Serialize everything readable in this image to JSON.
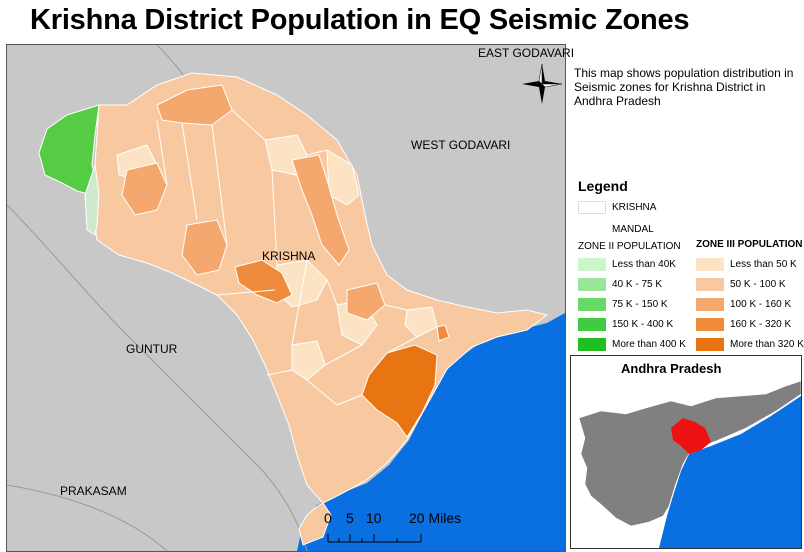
{
  "title": "Krishna District Population in EQ Seismic Zones",
  "map": {
    "labels": {
      "east_godavari": "EAST GODAVARI",
      "west_godavari": "WEST GODAVARI",
      "krishna": "KRISHNA",
      "guntur": "GUNTUR",
      "prakasam": "PRAKASAM"
    },
    "scale": {
      "labels": [
        "0",
        "5",
        "10",
        "20 Miles"
      ]
    },
    "colors": {
      "land": "#c8c8c8",
      "sea": "#0a6fe0",
      "zone2": "#55cc44",
      "zone2_light": "#cfe9cf"
    }
  },
  "description": "This map shows population distribution in Seismic zones for Krishna District in Andhra Pradesh",
  "legend": {
    "title": "Legend",
    "krishna": "KRISHNA",
    "mandal": "MANDAL",
    "zone2_title": "ZONE II POPULATION",
    "zone2": [
      {
        "label": "Less than 40K",
        "color": "#ccf5cc"
      },
      {
        "label": "40 K - 75 K",
        "color": "#99e699"
      },
      {
        "label": "75 K - 150 K",
        "color": "#66d966"
      },
      {
        "label": "150 K - 400 K",
        "color": "#40cc40"
      },
      {
        "label": "More than 400 K",
        "color": "#1fbf1f"
      }
    ],
    "zone3_title": "ZONE III POPULATION",
    "zone3": [
      {
        "label": "Less than 50 K",
        "color": "#fbe3c4"
      },
      {
        "label": "50 K - 100 K",
        "color": "#f8c9a0"
      },
      {
        "label": "100 K - 160 K",
        "color": "#f4a86d"
      },
      {
        "label": "160 K - 320 K",
        "color": "#ef8c3c"
      },
      {
        "label": "More than 320 K",
        "color": "#e97412"
      }
    ]
  },
  "inset": {
    "title": "Andhra Pradesh"
  }
}
